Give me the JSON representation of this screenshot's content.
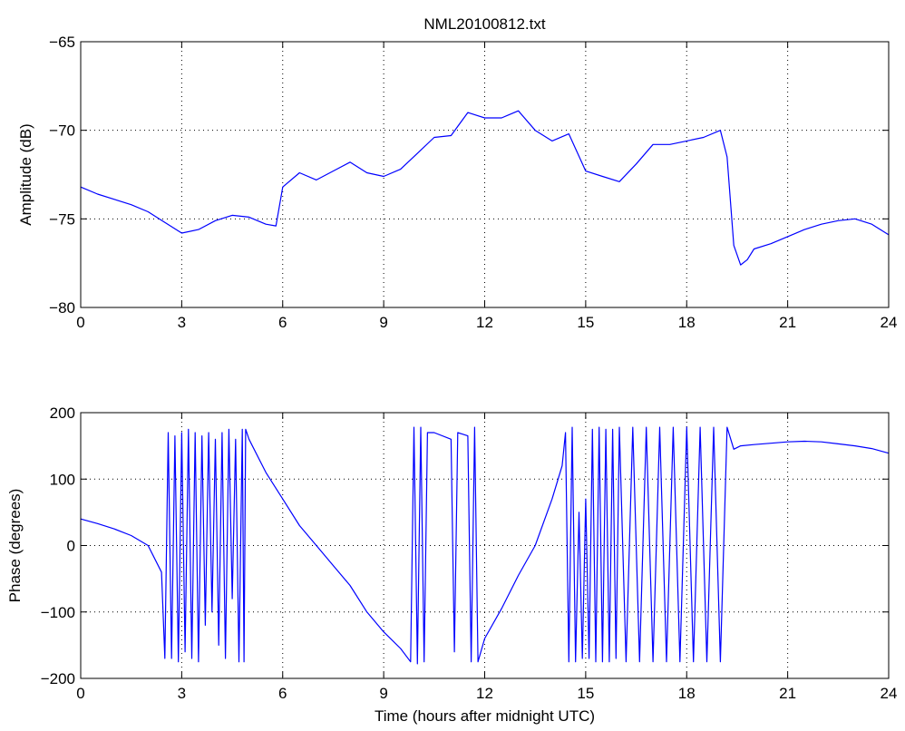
{
  "colors": {
    "trace": "#0000ff",
    "axes": "#000000",
    "grid": "#000000",
    "background": "#ffffff"
  },
  "chart_data": [
    {
      "type": "line",
      "title": "NML20100812.txt",
      "xlabel": "",
      "ylabel": "Amplitude (dB)",
      "xlim": [
        0,
        24
      ],
      "ylim": [
        -80,
        -65
      ],
      "xticks": [
        0,
        3,
        6,
        9,
        12,
        15,
        18,
        21,
        24
      ],
      "yticks": [
        -80,
        -75,
        -70,
        -65
      ],
      "xtick_labels": [
        "0",
        "3",
        "6",
        "9",
        "12",
        "15",
        "18",
        "21",
        "24"
      ],
      "ytick_labels": [
        "−80",
        "−75",
        "−70",
        "−65"
      ],
      "grid": true,
      "series": [
        {
          "color": "#0000ff",
          "x": [
            0,
            0.5,
            1,
            1.5,
            2,
            2.5,
            3,
            3.5,
            4,
            4.5,
            5,
            5.5,
            5.8,
            6,
            6.5,
            7,
            7.5,
            8,
            8.5,
            9,
            9.5,
            10,
            10.5,
            11,
            11.5,
            12,
            12.5,
            13,
            13.5,
            14,
            14.5,
            15,
            15.5,
            16,
            16.5,
            17,
            17.5,
            18,
            18.5,
            19,
            19.2,
            19.4,
            19.6,
            19.8,
            20,
            20.5,
            21,
            21.5,
            22,
            22.5,
            23,
            23.5,
            24
          ],
          "y": [
            -73.2,
            -73.6,
            -73.9,
            -74.2,
            -74.6,
            -75.2,
            -75.8,
            -75.6,
            -75.1,
            -74.8,
            -74.9,
            -75.3,
            -75.4,
            -73.2,
            -72.4,
            -72.8,
            -72.3,
            -71.8,
            -72.4,
            -72.6,
            -72.2,
            -71.3,
            -70.4,
            -70.3,
            -69.0,
            -69.3,
            -69.3,
            -68.9,
            -70.0,
            -70.6,
            -70.2,
            -72.3,
            -72.6,
            -72.9,
            -71.9,
            -70.8,
            -70.8,
            -70.6,
            -70.4,
            -70.0,
            -71.5,
            -76.5,
            -77.6,
            -77.3,
            -76.7,
            -76.4,
            -76.0,
            -75.6,
            -75.3,
            -75.1,
            -75.0,
            -75.3,
            -75.9
          ]
        }
      ]
    },
    {
      "type": "line",
      "title": "",
      "xlabel": "Time (hours after midnight UTC)",
      "ylabel": "Phase (degrees)",
      "xlim": [
        0,
        24
      ],
      "ylim": [
        -200,
        200
      ],
      "xticks": [
        0,
        3,
        6,
        9,
        12,
        15,
        18,
        21,
        24
      ],
      "yticks": [
        -200,
        -100,
        0,
        100,
        200
      ],
      "xtick_labels": [
        "0",
        "3",
        "6",
        "9",
        "12",
        "15",
        "18",
        "21",
        "24"
      ],
      "ytick_labels": [
        "−200",
        "−100",
        "0",
        "100",
        "200"
      ],
      "grid": true,
      "series": [
        {
          "color": "#0000ff",
          "x": [
            0,
            0.5,
            1,
            1.5,
            2,
            2.4,
            2.5,
            2.6,
            2.7,
            2.8,
            2.9,
            3.0,
            3.1,
            3.2,
            3.3,
            3.4,
            3.5,
            3.6,
            3.7,
            3.8,
            3.9,
            4.0,
            4.1,
            4.2,
            4.3,
            4.4,
            4.5,
            4.6,
            4.7,
            4.8,
            4.85,
            4.9,
            5.0,
            5.5,
            6,
            6.5,
            7,
            7.5,
            8,
            8.5,
            9,
            9.5,
            9.8,
            9.9,
            10.0,
            10.1,
            10.2,
            10.3,
            10.5,
            11,
            11.1,
            11.2,
            11.5,
            11.6,
            11.7,
            11.8,
            12,
            12.5,
            13,
            13.5,
            14,
            14.3,
            14.4,
            14.5,
            14.6,
            14.7,
            14.8,
            14.9,
            15.0,
            15.1,
            15.2,
            15.3,
            15.4,
            15.5,
            15.6,
            15.7,
            15.8,
            15.9,
            16.0,
            16.2,
            16.4,
            16.6,
            16.8,
            17.0,
            17.2,
            17.4,
            17.6,
            17.8,
            18.0,
            18.2,
            18.4,
            18.6,
            18.8,
            19.0,
            19.2,
            19.4,
            19.6,
            20,
            20.5,
            21,
            21.5,
            22,
            22.5,
            23,
            23.5,
            24
          ],
          "y": [
            40,
            33,
            25,
            15,
            0,
            -40,
            -170,
            170,
            -170,
            165,
            -175,
            170,
            -160,
            175,
            -170,
            170,
            -175,
            165,
            -120,
            170,
            -100,
            160,
            -150,
            170,
            -170,
            175,
            -80,
            160,
            -175,
            175,
            -175,
            175,
            160,
            110,
            70,
            30,
            0,
            -30,
            -60,
            -100,
            -130,
            -155,
            -175,
            178,
            -178,
            178,
            -175,
            170,
            170,
            160,
            -160,
            170,
            165,
            -175,
            178,
            -175,
            -140,
            -95,
            -45,
            0,
            70,
            120,
            170,
            -175,
            178,
            -175,
            50,
            -170,
            70,
            -170,
            175,
            -175,
            178,
            -175,
            175,
            -175,
            175,
            -170,
            178,
            -175,
            178,
            -175,
            178,
            -175,
            178,
            -175,
            178,
            -175,
            178,
            -175,
            178,
            -175,
            178,
            -175,
            178,
            145,
            150,
            152,
            154,
            156,
            157,
            156,
            153,
            150,
            146,
            139
          ]
        }
      ]
    }
  ]
}
